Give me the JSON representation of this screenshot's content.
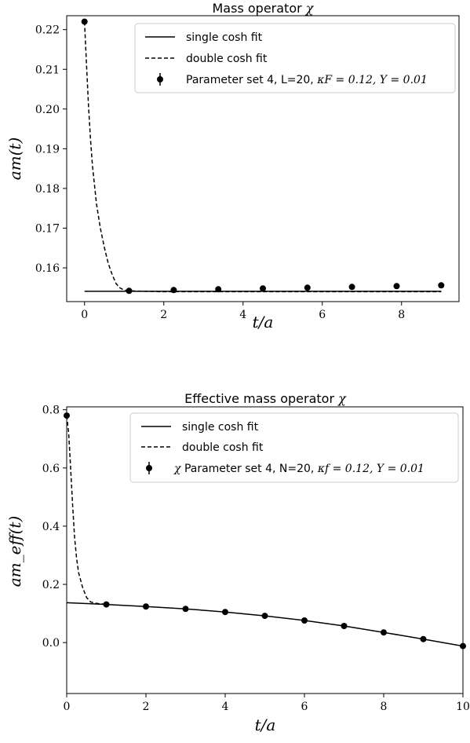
{
  "chart_data": [
    {
      "type": "scatter",
      "title": "Mass operator",
      "title_symbol": "χ",
      "xlabel": "t/a",
      "ylabel": "am(t)",
      "xlim": [
        -0.45,
        9.45
      ],
      "ylim": [
        0.1515,
        0.2235
      ],
      "xticks": [
        0,
        2,
        4,
        6,
        8
      ],
      "yticks": [
        0.16,
        0.17,
        0.18,
        0.19,
        0.2,
        0.21,
        0.22
      ],
      "legend_position": "top-right",
      "series": [
        {
          "name": "single cosh fit",
          "style": "solid-line",
          "x": [
            0,
            9
          ],
          "y": [
            0.1541,
            0.1541
          ]
        },
        {
          "name": "double cosh fit",
          "style": "dashed-line",
          "x": [
            0,
            0.05,
            0.1,
            0.15,
            0.2,
            0.3,
            0.4,
            0.5,
            0.6,
            0.7,
            0.8,
            0.9,
            1.0,
            1.12,
            1.5,
            2,
            9
          ],
          "y": [
            0.222,
            0.211,
            0.2008,
            0.1925,
            0.1858,
            0.1762,
            0.17,
            0.1651,
            0.1611,
            0.1582,
            0.156,
            0.1549,
            0.1544,
            0.1542,
            0.1541,
            0.154,
            0.154
          ]
        },
        {
          "name": "Parameter set 4, L=20,",
          "legend_math": "κF = 0.12, Y = 0.01",
          "style": "markers",
          "x": [
            0,
            1.125,
            2.25,
            3.375,
            4.5,
            5.625,
            6.75,
            7.875,
            9.0
          ],
          "y": [
            0.222,
            0.1542,
            0.1544,
            0.1546,
            0.1548,
            0.155,
            0.1552,
            0.1554,
            0.1556
          ]
        }
      ]
    },
    {
      "type": "scatter",
      "title": "Effective mass operator",
      "title_symbol": "χ",
      "xlabel": "t/a",
      "ylabel": "am_eff(t)",
      "xlim": [
        0,
        10
      ],
      "ylim": [
        -0.175,
        0.81
      ],
      "xticks": [
        0,
        2,
        4,
        6,
        8,
        10
      ],
      "yticks": [
        0.0,
        0.2,
        0.4,
        0.6,
        0.8
      ],
      "legend_position": "top-right",
      "series": [
        {
          "name": "single cosh fit",
          "style": "solid-line",
          "x": [
            0,
            1,
            2,
            3,
            4,
            5,
            6,
            7,
            8,
            9,
            10
          ],
          "y": [
            0.137,
            0.131,
            0.124,
            0.116,
            0.105,
            0.092,
            0.076,
            0.057,
            0.035,
            0.012,
            -0.012
          ]
        },
        {
          "name": "double cosh fit",
          "style": "dashed-line",
          "x": [
            0,
            0.05,
            0.1,
            0.15,
            0.2,
            0.25,
            0.3,
            0.4,
            0.5,
            0.6,
            0.7,
            0.8,
            0.9,
            1.0
          ],
          "y": [
            0.78,
            0.72,
            0.6,
            0.47,
            0.36,
            0.29,
            0.24,
            0.19,
            0.155,
            0.14,
            0.136,
            0.134,
            0.133,
            0.131
          ]
        },
        {
          "name": "Parameter set 4, N=20,",
          "legend_math": "κf = 0.12, Y = 0.01",
          "legend_prefix": "χ",
          "style": "markers",
          "x": [
            0,
            1,
            2,
            3,
            4,
            5,
            6,
            7,
            8,
            9,
            10
          ],
          "y": [
            0.78,
            0.131,
            0.124,
            0.116,
            0.105,
            0.092,
            0.076,
            0.057,
            0.035,
            0.012,
            -0.012
          ]
        }
      ]
    }
  ]
}
